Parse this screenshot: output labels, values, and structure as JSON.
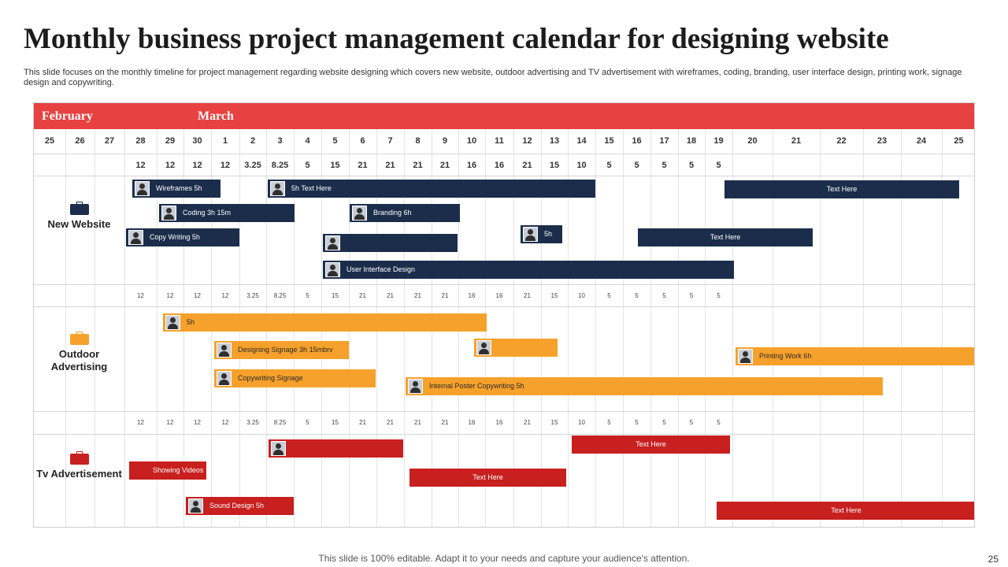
{
  "title": "Monthly business project management calendar for designing website",
  "subtitle": "This slide focuses on the monthly timeline for project management regarding website designing which covers new website, outdoor advertising and TV advertisement with wireframes, coding, branding, user interface design, printing work, signage design and copywriting.",
  "months": [
    "February",
    "March"
  ],
  "days": [
    "25",
    "26",
    "27",
    "28",
    "29",
    "30",
    "1",
    "2",
    "3",
    "4",
    "5",
    "6",
    "7",
    "8",
    "9",
    "10",
    "11",
    "12",
    "13",
    "14",
    "15",
    "16",
    "17",
    "18",
    "19",
    "20",
    "21",
    "22",
    "23",
    "24",
    "25"
  ],
  "hours": [
    "12",
    "12",
    "12",
    "12",
    "3.25",
    "8.25",
    "5",
    "15",
    "21",
    "21",
    "21",
    "21",
    "16",
    "16",
    "21",
    "15",
    "10",
    "5",
    "5",
    "5",
    "5",
    "5"
  ],
  "colors": {
    "header_red": "#e84141",
    "navy": "#1b2d4b",
    "orange": "#f6a12b",
    "red": "#c81f1f"
  },
  "sections": [
    {
      "label": "New Website",
      "icon": "briefcase-icon",
      "color": "#1b2d4b",
      "bars": [
        {
          "label": "Wireframes 5h",
          "photo": true
        },
        {
          "label": "5h Text Here",
          "photo": true
        },
        {
          "label": "Text Here",
          "photo": false
        },
        {
          "label": "Coding 3h 15m",
          "photo": true
        },
        {
          "label": "Branding 6h",
          "photo": true
        },
        {
          "label": "Copy Writing 5h",
          "photo": true
        },
        {
          "label": "",
          "photo": true
        },
        {
          "label": "5h",
          "photo": true
        },
        {
          "label": "Text Here",
          "photo": false
        },
        {
          "label": "User Interface Design",
          "photo": true
        }
      ]
    },
    {
      "label": "Outdoor Advertising",
      "icon": "briefcase-icon",
      "color": "#f6a12b",
      "bars": [
        {
          "label": "5h",
          "photo": true
        },
        {
          "label": "Designing Signage 3h 15mbrv",
          "photo": true
        },
        {
          "label": "",
          "photo": true
        },
        {
          "label": "Printing Work 6h",
          "photo": true
        },
        {
          "label": "Copywriting Signage",
          "photo": true
        },
        {
          "label": "Internal Poster Copywriting 5h",
          "photo": true
        }
      ]
    },
    {
      "label": "Tv Advertisement",
      "icon": "briefcase-icon",
      "color": "#c81f1f",
      "bars": [
        {
          "label": "",
          "photo": true
        },
        {
          "label": "Text Here",
          "photo": false
        },
        {
          "label": "Showing Videos",
          "photo": false
        },
        {
          "label": "Text Here",
          "photo": false
        },
        {
          "label": "Sound Design 5h",
          "photo": true
        },
        {
          "label": "Text Here",
          "photo": false
        }
      ]
    }
  ],
  "footer": "This slide is 100% editable. Adapt it to your needs and capture your audience's attention.",
  "page_number": "25"
}
